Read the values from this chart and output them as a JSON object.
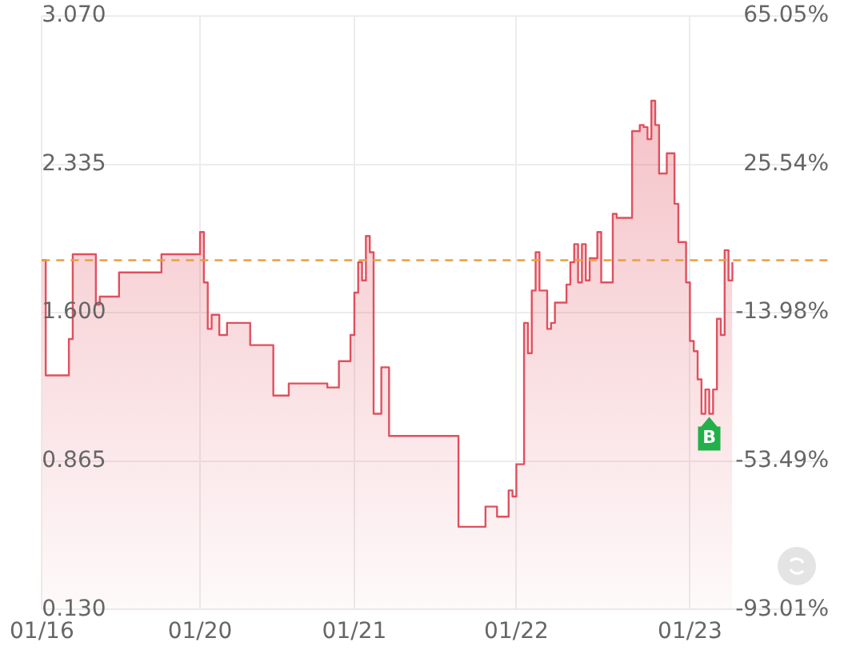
{
  "chart_data": {
    "type": "step",
    "categories": [
      "01/16",
      null,
      null,
      null,
      null,
      null,
      null,
      null,
      null,
      null,
      null,
      null,
      null,
      null,
      null,
      null,
      null,
      null,
      null,
      null,
      null,
      null,
      null,
      null,
      null,
      null,
      null,
      null,
      null,
      null,
      null,
      null,
      null,
      null,
      null,
      null,
      null,
      null,
      null,
      null,
      null,
      "01/20",
      null,
      null,
      null,
      null,
      null,
      null,
      null,
      null,
      null,
      null,
      null,
      null,
      null,
      null,
      null,
      null,
      null,
      null,
      null,
      null,
      null,
      null,
      null,
      null,
      null,
      null,
      null,
      null,
      null,
      null,
      null,
      null,
      null,
      null,
      null,
      null,
      null,
      null,
      null,
      "01/21",
      null,
      null,
      null,
      null,
      null,
      null,
      null,
      null,
      null,
      null,
      null,
      null,
      null,
      null,
      null,
      null,
      null,
      null,
      null,
      null,
      null,
      null,
      null,
      null,
      null,
      null,
      null,
      null,
      null,
      null,
      null,
      null,
      null,
      null,
      null,
      null,
      null,
      null,
      null,
      null,
      null,
      "01/22",
      null,
      null,
      null,
      null,
      null,
      null,
      null,
      null,
      null,
      null,
      null,
      null,
      null,
      null,
      null,
      null,
      null,
      null,
      null,
      null,
      null,
      null,
      null,
      null,
      null,
      null,
      null,
      null,
      null,
      null,
      null,
      null,
      null,
      null,
      null,
      null,
      null,
      null,
      null,
      null,
      null,
      null,
      null,
      null,
      "01/23",
      null,
      null,
      null,
      null,
      null,
      null,
      null,
      null,
      null,
      null,
      null,
      null,
      null,
      null,
      null,
      null,
      null,
      null,
      null,
      null,
      null,
      null,
      null,
      null,
      null,
      null,
      null,
      null,
      null,
      null,
      null,
      null,
      null,
      null,
      null,
      null
    ],
    "series": [
      {
        "color": "#e0505e",
        "values": [
          1.86,
          1.29,
          1.29,
          1.29,
          1.29,
          1.29,
          1.29,
          1.47,
          1.89,
          1.89,
          1.89,
          1.89,
          1.89,
          1.89,
          1.64,
          1.68,
          1.68,
          1.68,
          1.68,
          1.68,
          1.8,
          1.8,
          1.8,
          1.8,
          1.8,
          1.8,
          1.8,
          1.8,
          1.8,
          1.8,
          1.8,
          1.89,
          1.89,
          1.89,
          1.89,
          1.89,
          1.89,
          1.89,
          1.89,
          1.89,
          1.89,
          2.0,
          1.75,
          1.52,
          1.59,
          1.59,
          1.49,
          1.49,
          1.55,
          1.55,
          1.55,
          1.55,
          1.55,
          1.55,
          1.44,
          1.44,
          1.44,
          1.44,
          1.44,
          1.44,
          1.19,
          1.19,
          1.19,
          1.19,
          1.25,
          1.25,
          1.25,
          1.25,
          1.25,
          1.25,
          1.25,
          1.25,
          1.25,
          1.25,
          1.23,
          1.23,
          1.23,
          1.36,
          1.36,
          1.36,
          1.49,
          1.7,
          1.85,
          1.76,
          1.98,
          1.9,
          1.1,
          1.1,
          1.33,
          1.33,
          0.99,
          0.99,
          0.99,
          0.99,
          0.99,
          0.99,
          0.99,
          0.99,
          0.99,
          0.99,
          0.99,
          0.99,
          0.99,
          0.99,
          0.99,
          0.99,
          0.99,
          0.99,
          0.54,
          0.54,
          0.54,
          0.54,
          0.54,
          0.54,
          0.54,
          0.64,
          0.64,
          0.64,
          0.59,
          0.59,
          0.59,
          0.72,
          0.69,
          0.85,
          0.85,
          1.55,
          1.4,
          1.71,
          1.9,
          1.71,
          1.71,
          1.52,
          1.55,
          1.65,
          1.65,
          1.65,
          1.74,
          1.85,
          1.94,
          1.75,
          1.94,
          1.76,
          1.87,
          1.87,
          2.0,
          1.75,
          1.75,
          1.75,
          2.09,
          2.07,
          2.07,
          2.07,
          2.07,
          2.5,
          2.5,
          2.53,
          2.52,
          2.46,
          2.65,
          2.53,
          2.29,
          2.29,
          2.39,
          2.39,
          2.14,
          1.95,
          1.95,
          1.75,
          1.46,
          1.41,
          1.27,
          1.1,
          1.22,
          1.1,
          1.22,
          1.57,
          1.49,
          1.91,
          1.76,
          1.85,
          null,
          null,
          null,
          null,
          null,
          null,
          null,
          null,
          null,
          null,
          null,
          null,
          null,
          null,
          null,
          null,
          null,
          null,
          null,
          null,
          null,
          null,
          null,
          null,
          null
        ]
      }
    ],
    "ylim": [
      0.13,
      3.07
    ],
    "yticks": [
      {
        "value": 0.13,
        "label": "0.130"
      },
      {
        "value": 0.865,
        "label": "0.865"
      },
      {
        "value": 1.6,
        "label": "1.600"
      },
      {
        "value": 2.335,
        "label": "2.335"
      },
      {
        "value": 3.07,
        "label": "3.070"
      }
    ],
    "y2lim": [
      -93.01,
      65.05
    ],
    "y2ticks": [
      {
        "value": -93.01,
        "label": "-93.01%"
      },
      {
        "value": -53.49,
        "label": "-53.49%"
      },
      {
        "value": -13.98,
        "label": "-13.98%"
      },
      {
        "value": 25.54,
        "label": "25.54%"
      },
      {
        "value": 65.05,
        "label": "65.05%"
      }
    ],
    "ref_lines": [
      {
        "axis": "y",
        "value": 1.86,
        "color": "#e8a040",
        "line_style": "dashed"
      }
    ],
    "annotations": [
      {
        "text": "B",
        "y": 1.1
      }
    ],
    "grid": true,
    "legend": false
  }
}
